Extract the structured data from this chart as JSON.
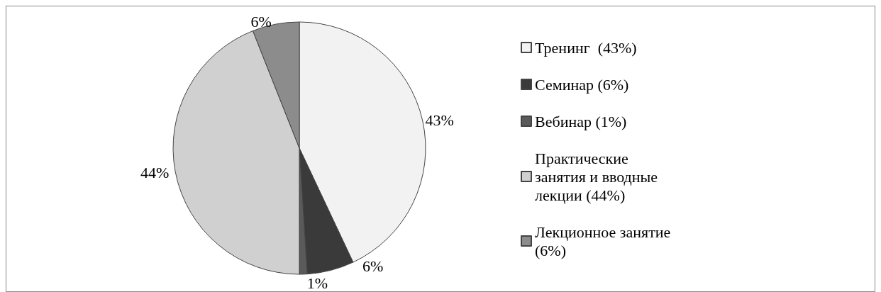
{
  "chart_data": {
    "type": "pie",
    "categories": [
      "Тренинг  (43%)",
      "Семинар (6%)",
      "Вебинар (1%)",
      "Практические занятия и вводные лекции (44%)",
      "Лекционное занятие (6%)"
    ],
    "values": [
      43,
      6,
      1,
      44,
      6
    ],
    "value_labels": [
      "43%",
      "6%",
      "1%",
      "44%",
      "6%"
    ],
    "colors": [
      "#f2f2f2",
      "#3a3a3a",
      "#5a5a5a",
      "#d0d0d0",
      "#8c8c8c"
    ],
    "legend": "right"
  }
}
